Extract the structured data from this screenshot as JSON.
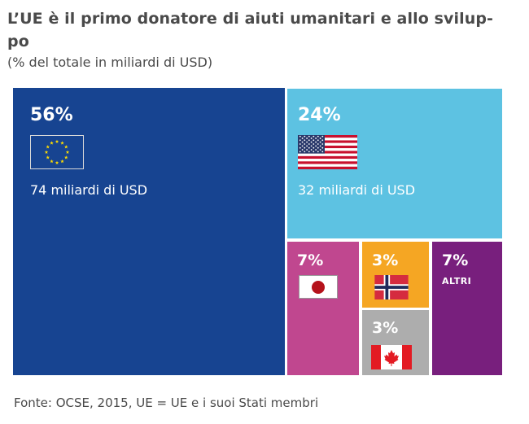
{
  "header": {
    "title": "L’UE è il primo donatore di aiuti umanitari e allo svilup-po",
    "title_line1": "L’UE è il primo donatore di aiuti umanitari e allo svilup-",
    "title_line2": "po",
    "subtitle": "(% del totale in miliardi di USD)"
  },
  "chart_data": {
    "type": "treemap",
    "title": "L’UE è il primo donatore di aiuti umanitari e allo sviluppo",
    "subtitle": "(% del totale in miliardi di USD)",
    "unit": "% of total",
    "items": [
      {
        "key": "eu",
        "label_pct": "56%",
        "value": 56,
        "amount": "74 miliardi di USD",
        "flag": "eu-flag-icon",
        "color": "#174491"
      },
      {
        "key": "us",
        "label_pct": "24%",
        "value": 24,
        "amount": "32 miliardi di USD",
        "flag": "us-flag-icon",
        "color": "#5DC2E2"
      },
      {
        "key": "jp",
        "label_pct": "7%",
        "value": 7,
        "flag": "japan-flag-icon",
        "color": "#C0478F"
      },
      {
        "key": "no",
        "label_pct": "3%",
        "value": 3,
        "flag": "norway-flag-icon",
        "color": "#F5A623"
      },
      {
        "key": "ca",
        "label_pct": "3%",
        "value": 3,
        "flag": "canada-flag-icon",
        "color": "#ADADAD"
      },
      {
        "key": "others",
        "label_pct": "7%",
        "value": 7,
        "label": "ALTRI",
        "color": "#781F7D"
      }
    ]
  },
  "footer": {
    "source": "Fonte: OCSE, 2015, UE = UE e i suoi Stati membri"
  }
}
